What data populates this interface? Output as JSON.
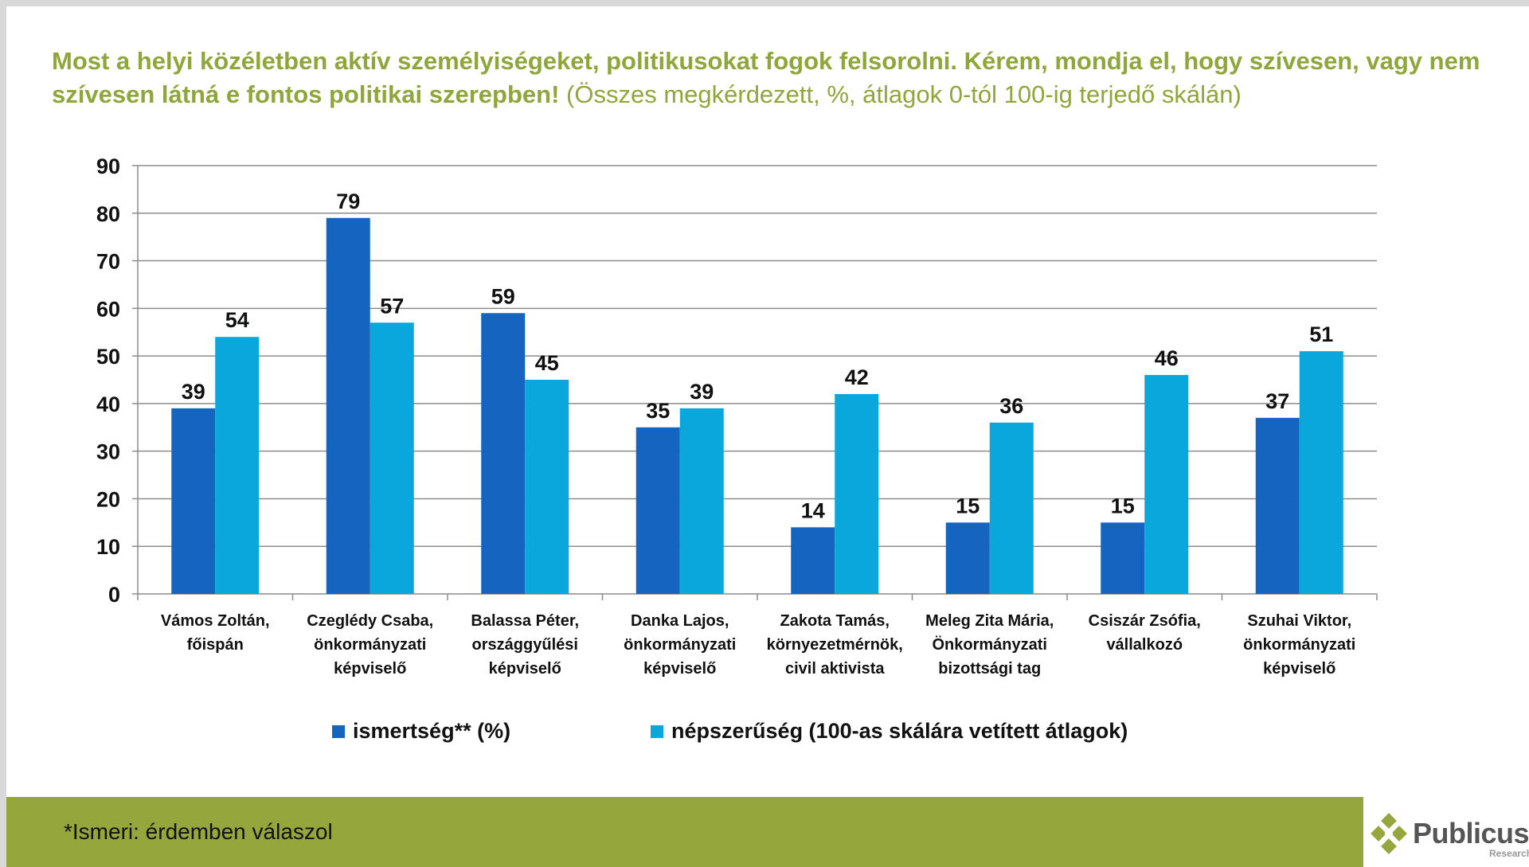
{
  "title": {
    "main": "Most a helyi közéletben aktív személyiségeket, politikusokat fogok felsorolni. Kérem, mondja el, hogy szívesen, vagy nem szívesen látná e fontos politikai szerepben!",
    "note": "(Összes megkérdezett, %, átlagok 0-tól 100-ig terjedő skálán)"
  },
  "chart_data": {
    "type": "bar",
    "categories": [
      [
        "Vámos Zoltán,",
        "főispán"
      ],
      [
        "Czeglédy Csaba,",
        "önkormányzati",
        "képviselő"
      ],
      [
        "Balassa Péter,",
        "országgyűlési",
        "képviselő"
      ],
      [
        "Danka Lajos,",
        "önkormányzati",
        "képviselő"
      ],
      [
        "Zakota Tamás,",
        "környezetmérnök,",
        "civil aktivista"
      ],
      [
        "Meleg Zita Mária,",
        "Önkormányzati",
        "bizottsági tag"
      ],
      [
        "Csiszár Zsófia,",
        "vállalkozó"
      ],
      [
        "Szuhai Viktor,",
        "önkormányzati",
        "képviselő"
      ]
    ],
    "series": [
      {
        "name": "ismertség** (%)",
        "color": "#1565c0",
        "values": [
          39,
          79,
          59,
          35,
          14,
          15,
          15,
          37
        ]
      },
      {
        "name": "népszerűség (100-as skálára vetített átlagok)",
        "color": "#0aa7dc",
        "values": [
          54,
          57,
          45,
          39,
          42,
          36,
          46,
          51
        ]
      }
    ],
    "ylim": [
      0,
      90
    ],
    "yticks": [
      0,
      10,
      20,
      30,
      40,
      50,
      60,
      70,
      80,
      90
    ],
    "grid": true,
    "legend": "bottom",
    "data_labels": true
  },
  "footer": {
    "note": "*Ismeri: érdemben válaszol"
  },
  "logo": {
    "name": "Publicus",
    "sub": "Research"
  }
}
